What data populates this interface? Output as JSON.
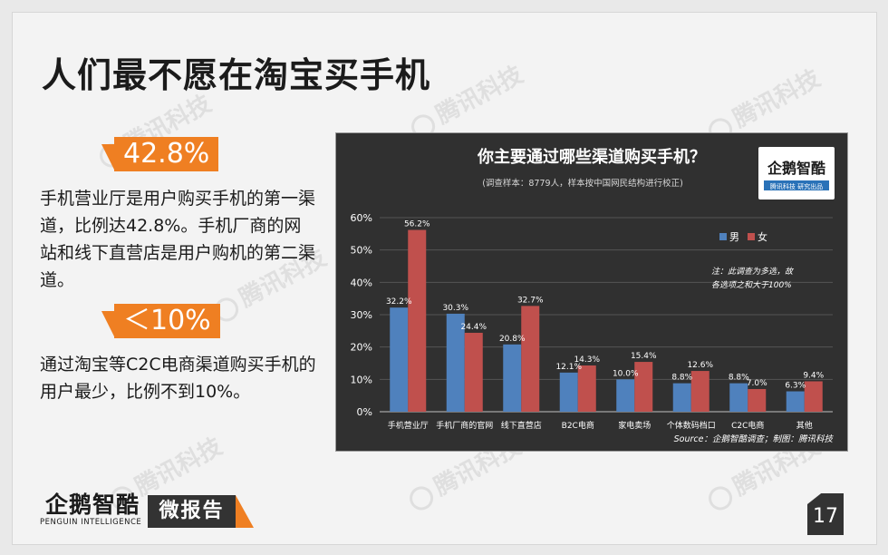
{
  "slide": {
    "title": "人们最不愿在淘宝买手机",
    "watermark": "腾讯科技",
    "stat1": {
      "value": "42.8%",
      "text": "手机营业厅是用户购买手机的第一渠道，比例达42.8%。手机厂商的网站和线下直营店是用户购机的第二渠道。"
    },
    "stat2": {
      "value": "＜10%",
      "text": "通过淘宝等C2C电商渠道购买手机的用户最少，比例不到10%。"
    },
    "brand_name": "企鹅智酷",
    "brand_sub": "PENGUIN INTELLIGENCE",
    "badge": "微报告",
    "page_number": "17"
  },
  "chart_data": {
    "type": "bar",
    "title": "你主要通过哪些渠道购买手机？",
    "subtitle": "(调查样本：8779人，样本按中国网民结构进行校正)",
    "categories": [
      "手机营业厅",
      "手机厂商的官网",
      "线下直营店",
      "B2C电商",
      "家电卖场",
      "个体数码档口",
      "C2C电商",
      "其他"
    ],
    "series": [
      {
        "name": "男",
        "color": "#4f81bd",
        "values": [
          32.2,
          30.3,
          20.8,
          12.1,
          10.0,
          8.8,
          8.8,
          6.3
        ]
      },
      {
        "name": "女",
        "color": "#c0504d",
        "values": [
          56.2,
          24.4,
          32.7,
          14.3,
          15.4,
          12.6,
          7.0,
          9.4
        ]
      }
    ],
    "ylim": [
      0,
      60
    ],
    "yticks": [
      "0%",
      "10%",
      "20%",
      "30%",
      "40%",
      "50%",
      "60%"
    ],
    "value_labels": {
      "男": [
        "32.2%",
        "30.3%",
        "20.8%",
        "12.1%",
        "10.0%",
        "8.8%",
        "8.8%",
        "6.3%"
      ],
      "女": [
        "56.2%",
        "24.4%",
        "32.7%",
        "14.3%",
        "15.4%",
        "12.6%",
        "7.0%",
        "9.4%"
      ]
    },
    "legend": "top-right",
    "note_line1": "注：此调查为多选，故",
    "note_line2": "各选项之和大于100%",
    "source": "Source：企鹅智酷调查；制图：腾讯科技",
    "inset_logo": "企鹅智酷",
    "inset_logo_sub": "腾讯科技 研究出品"
  }
}
